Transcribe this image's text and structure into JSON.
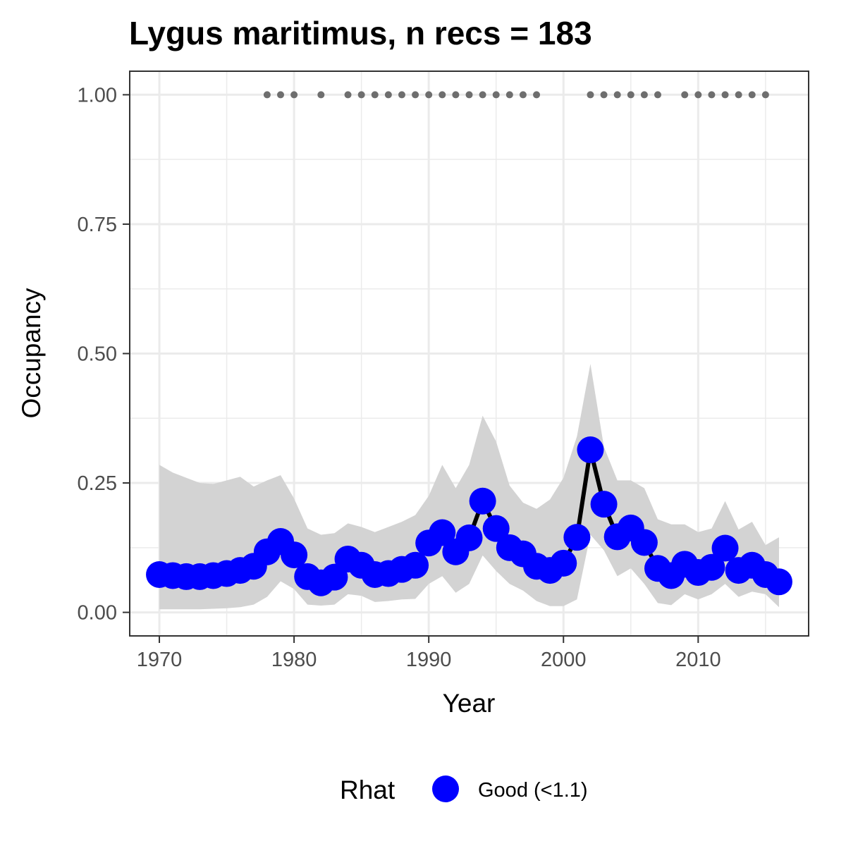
{
  "chart_data": {
    "type": "line",
    "title": "Lygus maritimus, n recs = 183",
    "xlabel": "Year",
    "ylabel": "Occupancy",
    "xlim": [
      1967.8,
      2018.2
    ],
    "ylim": [
      -0.0455,
      1.0455
    ],
    "x_ticks": [
      1970,
      1980,
      1990,
      2000,
      2010
    ],
    "x_tick_labels": [
      "1970",
      "1980",
      "1990",
      "2000",
      "2010"
    ],
    "y_ticks": [
      0,
      0.25,
      0.5,
      0.75,
      1
    ],
    "y_tick_labels": [
      "0.00",
      "0.25",
      "0.50",
      "0.75",
      "1.00"
    ],
    "grid": true,
    "legend": {
      "position": "bottom",
      "title": "Rhat",
      "entries": [
        {
          "label": "Good (<1.1)",
          "color": "#0000ff"
        }
      ]
    },
    "colors": {
      "point": "#0000ff",
      "line": "#000000",
      "ribbon": "#d3d3d3",
      "record_dots": "#6e6e6e",
      "grid": "#ebebeb",
      "panel_border": "#333333"
    },
    "x": [
      1970,
      1971,
      1972,
      1973,
      1974,
      1975,
      1976,
      1977,
      1978,
      1979,
      1980,
      1981,
      1982,
      1983,
      1984,
      1985,
      1986,
      1987,
      1988,
      1989,
      1990,
      1991,
      1992,
      1993,
      1994,
      1995,
      1996,
      1997,
      1998,
      1999,
      2000,
      2001,
      2002,
      2003,
      2004,
      2005,
      2006,
      2007,
      2008,
      2009,
      2010,
      2011,
      2012,
      2013,
      2014,
      2015,
      2016
    ],
    "series": [
      {
        "values": [
          0.073,
          0.071,
          0.069,
          0.069,
          0.071,
          0.075,
          0.081,
          0.089,
          0.117,
          0.137,
          0.111,
          0.069,
          0.057,
          0.068,
          0.103,
          0.091,
          0.073,
          0.075,
          0.083,
          0.091,
          0.134,
          0.154,
          0.117,
          0.144,
          0.215,
          0.162,
          0.125,
          0.113,
          0.089,
          0.081,
          0.095,
          0.145,
          0.314,
          0.209,
          0.146,
          0.163,
          0.135,
          0.085,
          0.071,
          0.093,
          0.077,
          0.087,
          0.124,
          0.081,
          0.091,
          0.073,
          0.059
        ],
        "lower": [
          0.006,
          0.006,
          0.006,
          0.006,
          0.007,
          0.008,
          0.01,
          0.015,
          0.03,
          0.06,
          0.045,
          0.015,
          0.013,
          0.015,
          0.035,
          0.032,
          0.02,
          0.022,
          0.025,
          0.026,
          0.055,
          0.07,
          0.038,
          0.055,
          0.11,
          0.08,
          0.055,
          0.042,
          0.022,
          0.012,
          0.012,
          0.025,
          0.15,
          0.12,
          0.07,
          0.085,
          0.055,
          0.018,
          0.014,
          0.035,
          0.025,
          0.035,
          0.055,
          0.03,
          0.04,
          0.035,
          0.01
        ],
        "upper": [
          0.285,
          0.27,
          0.26,
          0.25,
          0.248,
          0.255,
          0.262,
          0.243,
          0.255,
          0.265,
          0.22,
          0.162,
          0.15,
          0.153,
          0.172,
          0.165,
          0.155,
          0.165,
          0.175,
          0.188,
          0.225,
          0.285,
          0.24,
          0.285,
          0.38,
          0.33,
          0.245,
          0.212,
          0.2,
          0.218,
          0.26,
          0.34,
          0.48,
          0.32,
          0.255,
          0.255,
          0.24,
          0.18,
          0.17,
          0.17,
          0.155,
          0.162,
          0.215,
          0.16,
          0.175,
          0.13,
          0.145
        ]
      }
    ],
    "record_years": [
      1978,
      1979,
      1980,
      1982,
      1984,
      1985,
      1986,
      1987,
      1988,
      1989,
      1990,
      1991,
      1992,
      1993,
      1994,
      1995,
      1996,
      1997,
      1998,
      2002,
      2003,
      2004,
      2005,
      2006,
      2007,
      2009,
      2010,
      2011,
      2012,
      2013,
      2014,
      2015
    ],
    "record_value": 1.0
  }
}
